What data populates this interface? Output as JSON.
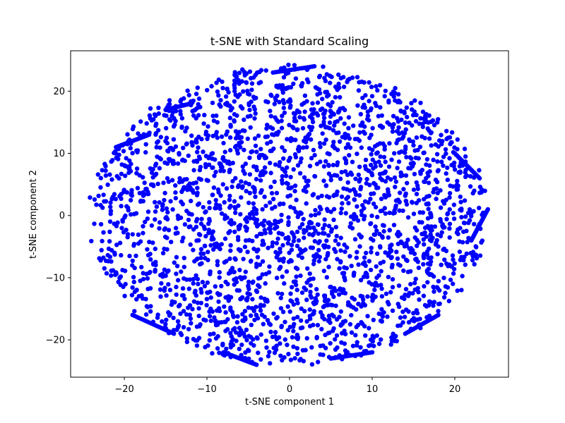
{
  "chart_data": {
    "type": "scatter",
    "title": "t-SNE with Standard Scaling",
    "xlabel": "t-SNE component 1",
    "ylabel": "t-SNE component 2",
    "xlim": [
      -26.5,
      26.5
    ],
    "ylim": [
      -26,
      26.5
    ],
    "xticks": [
      -20,
      -10,
      0,
      10,
      20
    ],
    "yticks": [
      -20,
      -10,
      0,
      10,
      20
    ],
    "xtick_labels": [
      "−20",
      "−10",
      "0",
      "10",
      "20"
    ],
    "ytick_labels": [
      "−20",
      "−10",
      "0",
      "10",
      "20"
    ],
    "marker_color": "#0000ff",
    "grid": false,
    "legend": false,
    "series": [
      {
        "shape": "filled cloud of points approximating an ellipse",
        "center": [
          0,
          0
        ],
        "x_extent": [
          -24.5,
          24.5
        ],
        "y_extent": [
          -24.5,
          24.5
        ]
      }
    ]
  }
}
